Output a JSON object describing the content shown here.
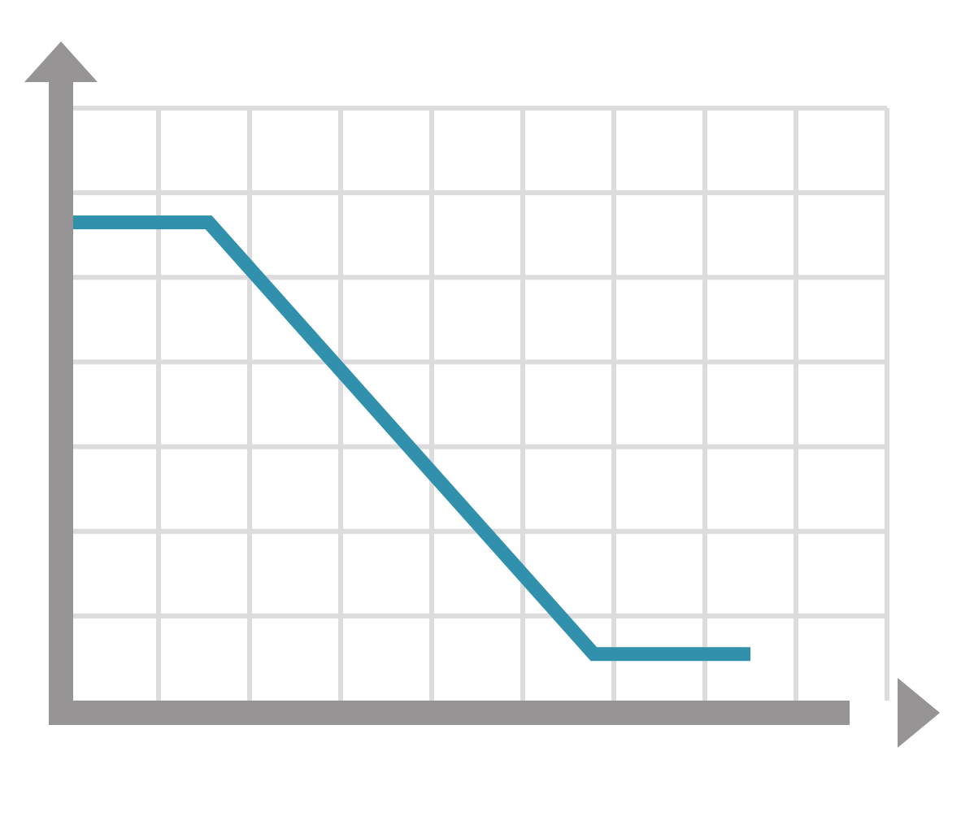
{
  "chart_data": {
    "type": "line",
    "title": "",
    "xlabel": "",
    "ylabel": "",
    "grid": true,
    "xlim": [
      0,
      9
    ],
    "ylim": [
      0,
      7
    ],
    "x_gridlines": 9,
    "y_gridlines": 7,
    "series": [
      {
        "color": "#3190ab",
        "points": [
          {
            "x": 0,
            "y": 5.65
          },
          {
            "x": 1.55,
            "y": 5.65
          },
          {
            "x": 5.78,
            "y": 0.55
          },
          {
            "x": 7.5,
            "y": 0.55
          }
        ]
      }
    ]
  },
  "colors": {
    "axis": "#969494",
    "grid": "#dcdcdc",
    "line": "#3190ab",
    "background": "#ffffff"
  }
}
